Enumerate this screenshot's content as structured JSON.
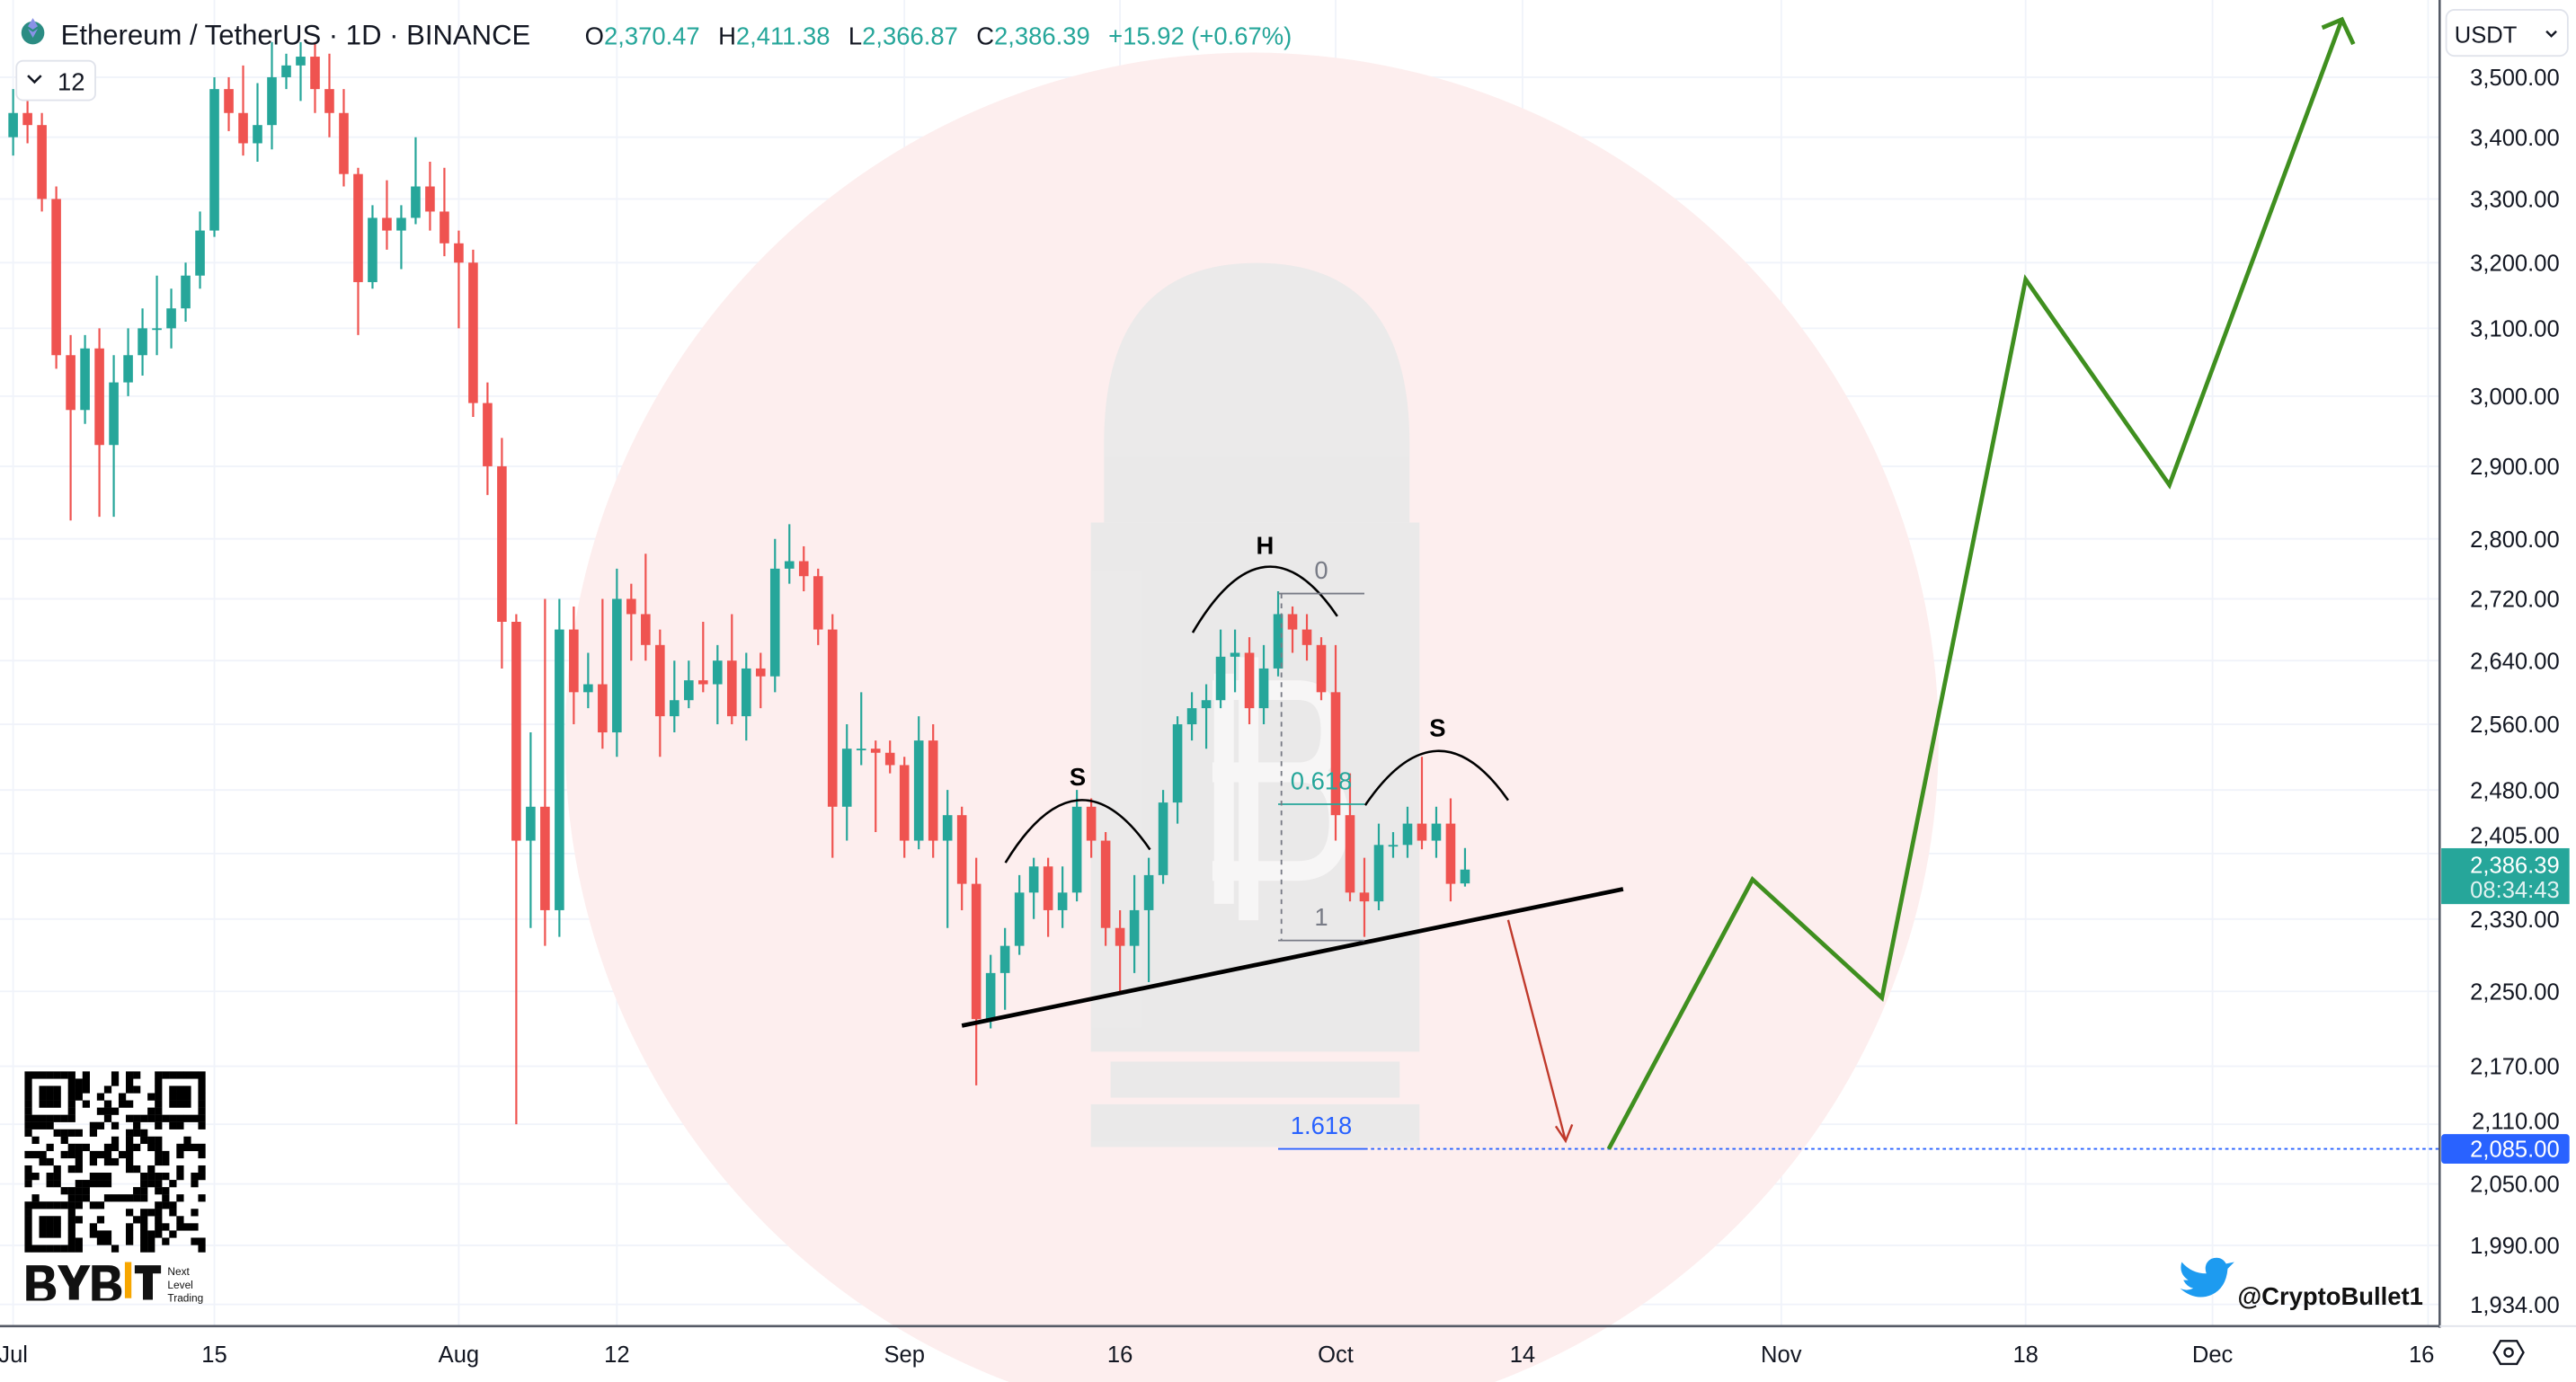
{
  "header": {
    "symbol_title": "Ethereum / TetherUS · 1D · BINANCE",
    "open_label": "O",
    "open": "2,370.47",
    "high_label": "H",
    "high": "2,411.38",
    "low_label": "L",
    "low": "2,366.87",
    "close_label": "C",
    "close": "2,386.39",
    "change": "+15.92 (+0.67%)",
    "indicators_toggle": "12"
  },
  "currency_selector": "USDT",
  "colors": {
    "up": "#26a69a",
    "down": "#ef5350",
    "projection": "#3f8f1f",
    "target_line": "#2962ff",
    "arrow": "#c0392b"
  },
  "price_axis": {
    "scale": "log",
    "ticks": [
      "3,500.00",
      "3,400.00",
      "3,300.00",
      "3,200.00",
      "3,100.00",
      "3,000.00",
      "2,900.00",
      "2,800.00",
      "2,720.00",
      "2,640.00",
      "2,560.00",
      "2,480.00",
      "2,405.00",
      "2,330.00",
      "2,250.00",
      "2,170.00",
      "2,110.00",
      "2,050.00",
      "1,990.00",
      "1,934.00"
    ],
    "current_price": "2,386.39",
    "countdown": "08:34:43",
    "target_price": "2,085.00"
  },
  "time_axis": {
    "ticks": [
      "Jul",
      "15",
      "Aug",
      "12",
      "Sep",
      "16",
      "Oct",
      "14",
      "Nov",
      "18",
      "Dec",
      "16"
    ]
  },
  "chart_data": {
    "type": "candlestick",
    "candles": [
      [
        "Jul 1",
        3400,
        3480,
        3370,
        3440
      ],
      [
        "Jul 2",
        3440,
        3470,
        3390,
        3420
      ],
      [
        "Jul 3",
        3420,
        3440,
        3280,
        3300
      ],
      [
        "Jul 4",
        3300,
        3320,
        3040,
        3060
      ],
      [
        "Jul 5",
        3060,
        3090,
        2825,
        2980
      ],
      [
        "Jul 6",
        2980,
        3090,
        2960,
        3070
      ],
      [
        "Jul 7",
        3070,
        3100,
        2830,
        2930
      ],
      [
        "Jul 8",
        2930,
        3060,
        2830,
        3020
      ],
      [
        "Jul 9",
        3020,
        3100,
        3000,
        3060
      ],
      [
        "Jul 10",
        3060,
        3130,
        3030,
        3100
      ],
      [
        "Jul 11",
        3100,
        3180,
        3060,
        3100
      ],
      [
        "Jul 12",
        3100,
        3160,
        3070,
        3130
      ],
      [
        "Jul 13",
        3130,
        3200,
        3110,
        3180
      ],
      [
        "Jul 14",
        3180,
        3280,
        3160,
        3250
      ],
      [
        "Jul 15",
        3250,
        3500,
        3240,
        3480
      ],
      [
        "Jul 16",
        3480,
        3500,
        3410,
        3440
      ],
      [
        "Jul 17",
        3440,
        3520,
        3370,
        3390
      ],
      [
        "Jul 18",
        3390,
        3490,
        3360,
        3420
      ],
      [
        "Jul 19",
        3420,
        3560,
        3380,
        3500
      ],
      [
        "Jul 20",
        3500,
        3540,
        3480,
        3520
      ],
      [
        "Jul 21",
        3520,
        3560,
        3460,
        3535
      ],
      [
        "Jul 22",
        3535,
        3560,
        3440,
        3480
      ],
      [
        "Jul 23",
        3480,
        3540,
        3400,
        3440
      ],
      [
        "Jul 24",
        3440,
        3480,
        3320,
        3340
      ],
      [
        "Jul 25",
        3340,
        3350,
        3090,
        3170
      ],
      [
        "Jul 26",
        3170,
        3290,
        3160,
        3270
      ],
      [
        "Jul 27",
        3270,
        3330,
        3220,
        3250
      ],
      [
        "Jul 28",
        3250,
        3290,
        3190,
        3270
      ],
      [
        "Jul 29",
        3270,
        3400,
        3260,
        3320
      ],
      [
        "Jul 30",
        3320,
        3360,
        3250,
        3280
      ],
      [
        "Jul 31",
        3280,
        3350,
        3210,
        3230
      ],
      [
        "Aug 1",
        3230,
        3250,
        3100,
        3200
      ],
      [
        "Aug 2",
        3200,
        3220,
        2970,
        2990
      ],
      [
        "Aug 3",
        2990,
        3020,
        2860,
        2900
      ],
      [
        "Aug 4",
        2900,
        2940,
        2630,
        2690
      ],
      [
        "Aug 5",
        2690,
        2700,
        2110,
        2420
      ],
      [
        "Aug 6",
        2420,
        2550,
        2320,
        2460
      ],
      [
        "Aug 7",
        2460,
        2720,
        2300,
        2340
      ],
      [
        "Aug 8",
        2340,
        2720,
        2310,
        2680
      ],
      [
        "Aug 9",
        2680,
        2710,
        2560,
        2600
      ],
      [
        "Aug 10",
        2600,
        2650,
        2580,
        2610
      ],
      [
        "Aug 11",
        2610,
        2720,
        2530,
        2550
      ],
      [
        "Aug 12",
        2550,
        2760,
        2520,
        2720
      ],
      [
        "Aug 13",
        2720,
        2740,
        2640,
        2700
      ],
      [
        "Aug 14",
        2700,
        2780,
        2640,
        2660
      ],
      [
        "Aug 15",
        2660,
        2680,
        2520,
        2570
      ],
      [
        "Aug 16",
        2570,
        2640,
        2550,
        2590
      ],
      [
        "Aug 17",
        2590,
        2640,
        2580,
        2615
      ],
      [
        "Aug 18",
        2615,
        2690,
        2600,
        2610
      ],
      [
        "Aug 19",
        2610,
        2660,
        2560,
        2640
      ],
      [
        "Aug 20",
        2640,
        2700,
        2560,
        2570
      ],
      [
        "Aug 21",
        2570,
        2650,
        2540,
        2630
      ],
      [
        "Aug 22",
        2630,
        2650,
        2580,
        2620
      ],
      [
        "Aug 23",
        2620,
        2800,
        2600,
        2760
      ],
      [
        "Aug 24",
        2760,
        2820,
        2740,
        2770
      ],
      [
        "Aug 25",
        2770,
        2790,
        2730,
        2750
      ],
      [
        "Aug 26",
        2750,
        2760,
        2660,
        2680
      ],
      [
        "Aug 27",
        2680,
        2700,
        2400,
        2460
      ],
      [
        "Aug 28",
        2460,
        2560,
        2420,
        2530
      ],
      [
        "Aug 29",
        2530,
        2600,
        2510,
        2530
      ],
      [
        "Aug 30",
        2530,
        2540,
        2430,
        2525
      ],
      [
        "Aug 31",
        2525,
        2540,
        2500,
        2510
      ],
      [
        "Sep 1",
        2510,
        2520,
        2400,
        2420
      ],
      [
        "Sep 2",
        2420,
        2570,
        2410,
        2540
      ],
      [
        "Sep 3",
        2540,
        2560,
        2400,
        2420
      ],
      [
        "Sep 4",
        2420,
        2480,
        2320,
        2450
      ],
      [
        "Sep 5",
        2450,
        2460,
        2340,
        2370
      ],
      [
        "Sep 6",
        2370,
        2400,
        2150,
        2220
      ],
      [
        "Sep 7",
        2220,
        2290,
        2210,
        2270
      ],
      [
        "Sep 8",
        2270,
        2320,
        2230,
        2300
      ],
      [
        "Sep 9",
        2300,
        2380,
        2290,
        2360
      ],
      [
        "Sep 10",
        2360,
        2400,
        2330,
        2390
      ],
      [
        "Sep 11",
        2390,
        2400,
        2310,
        2340
      ],
      [
        "Sep 12",
        2340,
        2390,
        2320,
        2360
      ],
      [
        "Sep 13",
        2360,
        2480,
        2350,
        2460
      ],
      [
        "Sep 14",
        2460,
        2470,
        2400,
        2420
      ],
      [
        "Sep 15",
        2420,
        2430,
        2300,
        2320
      ],
      [
        "Sep 16",
        2320,
        2340,
        2250,
        2300
      ],
      [
        "Sep 17",
        2300,
        2380,
        2270,
        2340
      ],
      [
        "Sep 18",
        2340,
        2400,
        2260,
        2380
      ],
      [
        "Sep 19",
        2380,
        2480,
        2370,
        2465
      ],
      [
        "Sep 20",
        2465,
        2570,
        2440,
        2560
      ],
      [
        "Sep 21",
        2560,
        2600,
        2540,
        2580
      ],
      [
        "Sep 22",
        2580,
        2610,
        2530,
        2590
      ],
      [
        "Sep 23",
        2590,
        2680,
        2580,
        2645
      ],
      [
        "Sep 24",
        2645,
        2680,
        2600,
        2650
      ],
      [
        "Sep 25",
        2650,
        2670,
        2560,
        2580
      ],
      [
        "Sep 26",
        2580,
        2660,
        2560,
        2630
      ],
      [
        "Sep 27",
        2630,
        2730,
        2620,
        2700
      ],
      [
        "Sep 28",
        2700,
        2710,
        2650,
        2680
      ],
      [
        "Sep 29",
        2680,
        2700,
        2640,
        2660
      ],
      [
        "Sep 30",
        2660,
        2670,
        2590,
        2600
      ],
      [
        "Oct 1",
        2600,
        2660,
        2420,
        2450
      ],
      [
        "Oct 2",
        2450,
        2500,
        2350,
        2360
      ],
      [
        "Oct 3",
        2360,
        2400,
        2310,
        2350
      ],
      [
        "Oct 4",
        2350,
        2440,
        2340,
        2415
      ],
      [
        "Oct 5",
        2415,
        2430,
        2400,
        2415
      ],
      [
        "Oct 6",
        2415,
        2460,
        2400,
        2440
      ],
      [
        "Oct 7",
        2440,
        2520,
        2410,
        2420
      ],
      [
        "Oct 8",
        2420,
        2460,
        2400,
        2440
      ],
      [
        "Oct 9",
        2440,
        2470,
        2350,
        2370
      ],
      [
        "Oct 10",
        2370.47,
        2411.38,
        2366.87,
        2386.39
      ]
    ],
    "ylim": [
      1934,
      3500
    ],
    "xlim": [
      "Jul 1",
      "Dec 16"
    ],
    "grid": true
  },
  "drawings": {
    "pattern_labels": [
      "S",
      "H",
      "S"
    ],
    "neckline": [
      [
        "Sep 5",
        2213
      ],
      [
        "Oct 21",
        2364
      ]
    ],
    "fib": {
      "levels": [
        "0",
        "0.618",
        "1",
        "1.618"
      ],
      "values": [
        2727,
        2463,
        2306,
        2085
      ],
      "from": "Sep 27",
      "to": "Oct 3"
    },
    "down_arrow": [
      [
        "Oct 13",
        2329
      ],
      [
        "Oct 17",
        2093
      ]
    ],
    "projection": [
      [
        "Oct 20",
        2085
      ],
      [
        "Oct 30",
        2375
      ],
      [
        "Nov 8",
        2243
      ],
      [
        "Nov 18",
        3174
      ],
      [
        "Nov 28",
        2874
      ],
      [
        "Dec 10",
        3599
      ]
    ]
  },
  "branding": {
    "logo": "BYBIT",
    "tagline": [
      "Next",
      "Level",
      "Trading"
    ],
    "twitter_handle": "@CryptoBullet1"
  }
}
